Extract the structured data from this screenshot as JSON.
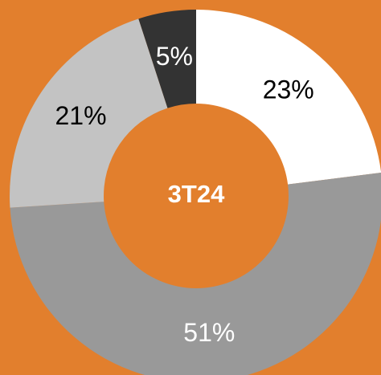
{
  "chart_data": {
    "type": "donut",
    "center_label": "3T24",
    "values": [
      23,
      51,
      21,
      5
    ],
    "value_labels": [
      "23%",
      "51%",
      "21%",
      "5%"
    ],
    "colors": [
      "#ffffff",
      "#999999",
      "#c3c3c3",
      "#333333"
    ],
    "label_colors": [
      "#000000",
      "#ffffff",
      "#000000",
      "#ffffff"
    ]
  }
}
